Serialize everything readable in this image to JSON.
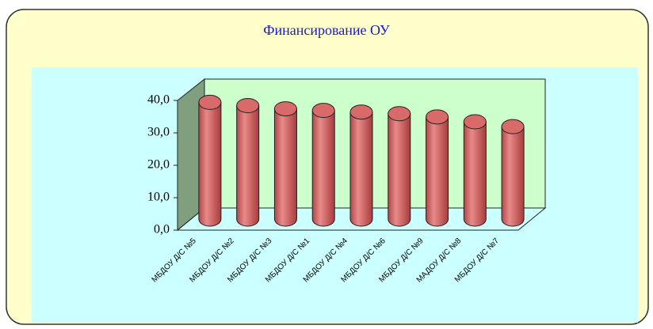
{
  "chart_data": {
    "type": "bar",
    "title": "Финансирование ОУ",
    "categories": [
      "МБДОУ Д/С №5",
      "МБДОУ Д/С №2",
      "МБДОУ Д/С №3",
      "МБДОУ Д/С №1",
      "МБДОУ Д/С №4",
      "МБДОУ Д/С №6",
      "МБДОУ Д/С №9",
      "МАДОУ Д/С №8",
      "МБДОУ Д/С №7"
    ],
    "values": [
      36,
      35,
      34,
      33.5,
      33,
      32.5,
      31.5,
      30,
      28.5
    ],
    "color": "#d96a6a",
    "ylim": [
      0,
      40
    ],
    "yticks": [
      {
        "value": 0,
        "label": "0,0"
      },
      {
        "value": 10,
        "label": "10,0"
      },
      {
        "value": 20,
        "label": "20,0"
      },
      {
        "value": 30,
        "label": "30,0"
      },
      {
        "value": 40,
        "label": "40,0"
      }
    ]
  }
}
